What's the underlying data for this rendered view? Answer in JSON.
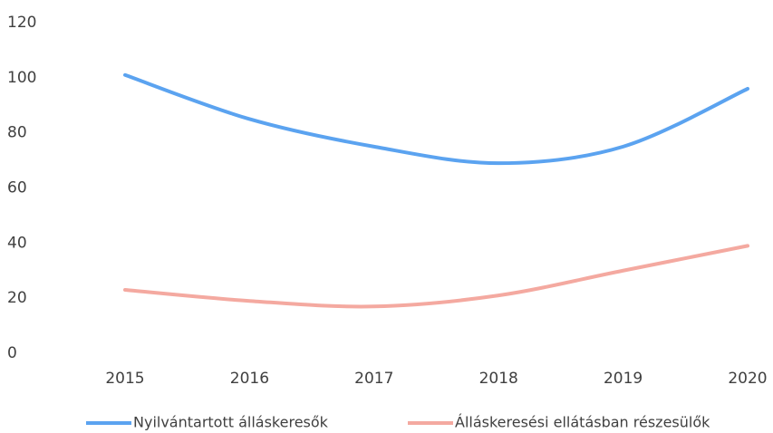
{
  "chart_data": {
    "type": "line",
    "categories": [
      "2015",
      "2016",
      "2017",
      "2018",
      "2019",
      "2020"
    ],
    "series": [
      {
        "name": "Nyilvántartott álláskeresők",
        "color": "#5ba3f0",
        "values": [
          101,
          85,
          75,
          69,
          75,
          96
        ]
      },
      {
        "name": "Álláskeresési ellátásban részesülők",
        "color": "#f4a9a0",
        "values": [
          23,
          19,
          17,
          21,
          30,
          39
        ]
      }
    ],
    "ylim": [
      0,
      120
    ],
    "yticks": [
      0,
      20,
      40,
      60,
      80,
      100,
      120
    ],
    "grid": false,
    "legend": "bottom"
  }
}
